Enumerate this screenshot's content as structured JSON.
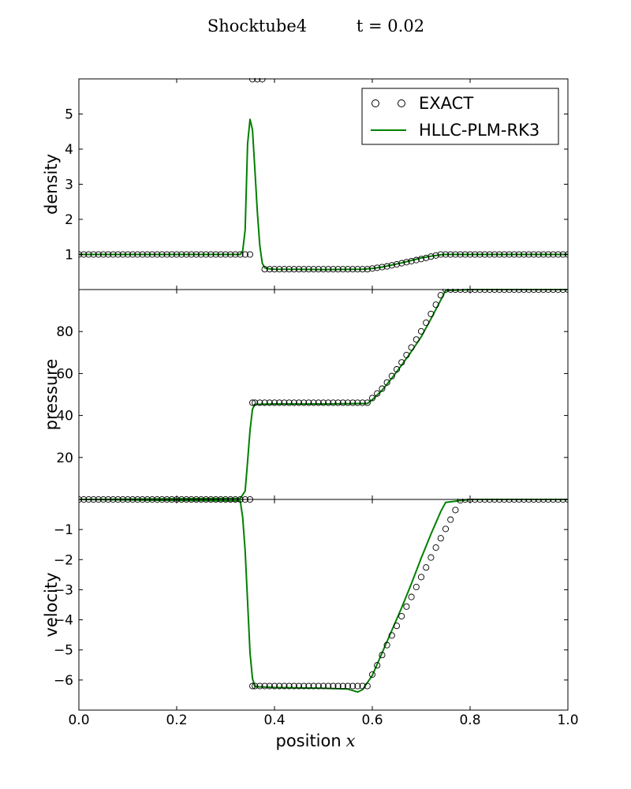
{
  "header": {
    "title": "Shocktube4",
    "time_label": "t = 0.02"
  },
  "colors": {
    "numeric": "#008000",
    "exact_marker": "#000000",
    "axes": "#000000",
    "background": "#ffffff"
  },
  "legend": {
    "location": "upper right of top panel",
    "entries": [
      "EXACT",
      "HLLC-PLM-RK3"
    ]
  },
  "chart_data": {
    "type": "line",
    "shared_x": {
      "label": "position",
      "label_math": "x",
      "range": [
        0.0,
        1.0
      ],
      "ticks": [
        0.0,
        0.2,
        0.4,
        0.6,
        0.8,
        1.0
      ],
      "tick_labels": [
        "0.0",
        "0.2",
        "0.4",
        "0.6",
        "0.8",
        "1.0"
      ]
    },
    "panels": [
      {
        "ylabel": "density",
        "ylim": [
          0.0,
          6.0
        ],
        "yticks": [
          1,
          2,
          3,
          4,
          5
        ],
        "ytick_labels": [
          "1",
          "2",
          "3",
          "4",
          "5"
        ],
        "series": [
          {
            "name": "EXACT",
            "style": "markers",
            "x": [
              0.0,
              0.01,
              0.02,
              0.03,
              0.04,
              0.05,
              0.06,
              0.07,
              0.08,
              0.09,
              0.1,
              0.11,
              0.12,
              0.13,
              0.14,
              0.15,
              0.16,
              0.17,
              0.18,
              0.19,
              0.2,
              0.21,
              0.22,
              0.23,
              0.24,
              0.25,
              0.26,
              0.27,
              0.28,
              0.29,
              0.3,
              0.31,
              0.32,
              0.33,
              0.34,
              0.35,
              0.355,
              0.365,
              0.375,
              0.38,
              0.39,
              0.4,
              0.41,
              0.42,
              0.43,
              0.44,
              0.45,
              0.46,
              0.47,
              0.48,
              0.49,
              0.5,
              0.51,
              0.52,
              0.53,
              0.54,
              0.55,
              0.56,
              0.57,
              0.58,
              0.59,
              0.6,
              0.61,
              0.62,
              0.63,
              0.64,
              0.65,
              0.66,
              0.67,
              0.68,
              0.69,
              0.7,
              0.71,
              0.72,
              0.73,
              0.74,
              0.75,
              0.76,
              0.77,
              0.78,
              0.79,
              0.8,
              0.81,
              0.82,
              0.83,
              0.84,
              0.85,
              0.86,
              0.87,
              0.88,
              0.89,
              0.9,
              0.91,
              0.92,
              0.93,
              0.94,
              0.95,
              0.96,
              0.97,
              0.98,
              0.99,
              1.0
            ],
            "y": [
              1.0,
              1.0,
              1.0,
              1.0,
              1.0,
              1.0,
              1.0,
              1.0,
              1.0,
              1.0,
              1.0,
              1.0,
              1.0,
              1.0,
              1.0,
              1.0,
              1.0,
              1.0,
              1.0,
              1.0,
              1.0,
              1.0,
              1.0,
              1.0,
              1.0,
              1.0,
              1.0,
              1.0,
              1.0,
              1.0,
              1.0,
              1.0,
              1.0,
              1.0,
              1.0,
              1.0,
              5.99,
              5.99,
              5.99,
              0.58,
              0.58,
              0.58,
              0.58,
              0.58,
              0.58,
              0.58,
              0.58,
              0.58,
              0.58,
              0.58,
              0.58,
              0.58,
              0.58,
              0.58,
              0.58,
              0.58,
              0.58,
              0.58,
              0.58,
              0.58,
              0.58,
              0.6,
              0.62,
              0.64,
              0.66,
              0.69,
              0.72,
              0.75,
              0.78,
              0.81,
              0.84,
              0.87,
              0.9,
              0.94,
              0.97,
              1.0,
              1.0,
              1.0,
              1.0,
              1.0,
              1.0,
              1.0,
              1.0,
              1.0,
              1.0,
              1.0,
              1.0,
              1.0,
              1.0,
              1.0,
              1.0,
              1.0,
              1.0,
              1.0,
              1.0,
              1.0,
              1.0,
              1.0,
              1.0,
              1.0,
              1.0,
              1.0
            ]
          },
          {
            "name": "HLLC-PLM-RK3",
            "style": "line",
            "x": [
              0.0,
              0.33,
              0.335,
              0.34,
              0.345,
              0.35,
              0.355,
              0.36,
              0.365,
              0.37,
              0.375,
              0.38,
              0.385,
              0.39,
              0.4,
              0.5,
              0.58,
              0.6,
              0.62,
              0.64,
              0.66,
              0.68,
              0.7,
              0.72,
              0.74,
              0.75,
              0.8,
              1.0
            ],
            "y": [
              1.0,
              1.0,
              1.1,
              1.7,
              4.15,
              4.85,
              4.55,
              3.4,
              2.2,
              1.25,
              0.75,
              0.62,
              0.6,
              0.59,
              0.58,
              0.57,
              0.58,
              0.6,
              0.64,
              0.7,
              0.76,
              0.83,
              0.9,
              0.95,
              0.99,
              1.0,
              1.0,
              1.0
            ]
          }
        ]
      },
      {
        "ylabel": "pressure",
        "ylim": [
          0.0,
          100.0
        ],
        "yticks": [
          20,
          40,
          60,
          80
        ],
        "ytick_labels": [
          "20",
          "40",
          "60",
          "80"
        ],
        "series": [
          {
            "name": "EXACT",
            "style": "markers",
            "x": [
              0.0,
              0.01,
              0.02,
              0.03,
              0.04,
              0.05,
              0.06,
              0.07,
              0.08,
              0.09,
              0.1,
              0.11,
              0.12,
              0.13,
              0.14,
              0.15,
              0.16,
              0.17,
              0.18,
              0.19,
              0.2,
              0.21,
              0.22,
              0.23,
              0.24,
              0.25,
              0.26,
              0.27,
              0.28,
              0.29,
              0.3,
              0.31,
              0.32,
              0.33,
              0.34,
              0.35,
              0.355,
              0.36,
              0.37,
              0.38,
              0.39,
              0.4,
              0.41,
              0.42,
              0.43,
              0.44,
              0.45,
              0.46,
              0.47,
              0.48,
              0.49,
              0.5,
              0.51,
              0.52,
              0.53,
              0.54,
              0.55,
              0.56,
              0.57,
              0.58,
              0.59,
              0.6,
              0.61,
              0.62,
              0.63,
              0.64,
              0.65,
              0.66,
              0.67,
              0.68,
              0.69,
              0.7,
              0.71,
              0.72,
              0.73,
              0.74,
              0.75,
              0.76,
              0.77,
              0.78,
              0.79,
              0.8,
              0.81,
              0.82,
              0.83,
              0.84,
              0.85,
              0.86,
              0.87,
              0.88,
              0.89,
              0.9,
              0.91,
              0.92,
              0.93,
              0.94,
              0.95,
              0.96,
              0.97,
              0.98,
              0.99,
              1.0
            ],
            "y": [
              0.01,
              0.01,
              0.01,
              0.01,
              0.01,
              0.01,
              0.01,
              0.01,
              0.01,
              0.01,
              0.01,
              0.01,
              0.01,
              0.01,
              0.01,
              0.01,
              0.01,
              0.01,
              0.01,
              0.01,
              0.01,
              0.01,
              0.01,
              0.01,
              0.01,
              0.01,
              0.01,
              0.01,
              0.01,
              0.01,
              0.01,
              0.01,
              0.01,
              0.01,
              0.01,
              0.01,
              46.1,
              46.1,
              46.1,
              46.1,
              46.1,
              46.1,
              46.1,
              46.1,
              46.1,
              46.1,
              46.1,
              46.1,
              46.1,
              46.1,
              46.1,
              46.1,
              46.1,
              46.1,
              46.1,
              46.1,
              46.1,
              46.1,
              46.1,
              46.1,
              46.1,
              48.3,
              50.5,
              52.8,
              55.7,
              58.8,
              62.0,
              65.3,
              68.8,
              72.4,
              76.2,
              80.1,
              84.2,
              88.4,
              92.8,
              97.3,
              100.0,
              100.0,
              100.0,
              100.0,
              100.0,
              100.0,
              100.0,
              100.0,
              100.0,
              100.0,
              100.0,
              100.0,
              100.0,
              100.0,
              100.0,
              100.0,
              100.0,
              100.0,
              100.0,
              100.0,
              100.0,
              100.0,
              100.0,
              100.0,
              100.0,
              100.0
            ]
          },
          {
            "name": "HLLC-PLM-RK3",
            "style": "line",
            "x": [
              0.0,
              0.33,
              0.34,
              0.345,
              0.35,
              0.355,
              0.36,
              0.4,
              0.5,
              0.59,
              0.6,
              0.62,
              0.64,
              0.66,
              0.68,
              0.7,
              0.72,
              0.74,
              0.75,
              0.8,
              1.0
            ],
            "y": [
              0.01,
              0.5,
              4.0,
              18.0,
              33.0,
              43.0,
              45.3,
              45.5,
              45.5,
              45.7,
              47.5,
              52.0,
              57.8,
              64.0,
              70.5,
              77.5,
              86.0,
              95.0,
              99.5,
              100.0,
              100.0
            ]
          }
        ]
      },
      {
        "ylabel": "velocity",
        "ylim": [
          -7.0,
          0.0
        ],
        "yticks": [
          -6,
          -5,
          -4,
          -3,
          -2,
          -1
        ],
        "ytick_labels": [
          "−6",
          "−5",
          "−4",
          "−3",
          "−2",
          "−1"
        ],
        "series": [
          {
            "name": "EXACT",
            "style": "markers",
            "x": [
              0.0,
              0.01,
              0.02,
              0.03,
              0.04,
              0.05,
              0.06,
              0.07,
              0.08,
              0.09,
              0.1,
              0.11,
              0.12,
              0.13,
              0.14,
              0.15,
              0.16,
              0.17,
              0.18,
              0.19,
              0.2,
              0.21,
              0.22,
              0.23,
              0.24,
              0.25,
              0.26,
              0.27,
              0.28,
              0.29,
              0.3,
              0.31,
              0.32,
              0.33,
              0.34,
              0.35,
              0.355,
              0.36,
              0.37,
              0.38,
              0.39,
              0.4,
              0.41,
              0.42,
              0.43,
              0.44,
              0.45,
              0.46,
              0.47,
              0.48,
              0.49,
              0.5,
              0.51,
              0.52,
              0.53,
              0.54,
              0.55,
              0.56,
              0.57,
              0.58,
              0.59,
              0.6,
              0.61,
              0.62,
              0.63,
              0.64,
              0.65,
              0.66,
              0.67,
              0.68,
              0.69,
              0.7,
              0.71,
              0.72,
              0.73,
              0.74,
              0.75,
              0.76,
              0.77,
              0.78,
              0.79,
              0.8,
              0.81,
              0.82,
              0.83,
              0.84,
              0.85,
              0.86,
              0.87,
              0.88,
              0.89,
              0.9,
              0.91,
              0.92,
              0.93,
              0.94,
              0.95,
              0.96,
              0.97,
              0.98,
              0.99,
              1.0
            ],
            "y": [
              0.0,
              0.0,
              0.0,
              0.0,
              0.0,
              0.0,
              0.0,
              0.0,
              0.0,
              0.0,
              0.0,
              0.0,
              0.0,
              0.0,
              0.0,
              0.0,
              0.0,
              0.0,
              0.0,
              0.0,
              0.0,
              0.0,
              0.0,
              0.0,
              0.0,
              0.0,
              0.0,
              0.0,
              0.0,
              0.0,
              0.0,
              0.0,
              0.0,
              0.0,
              0.0,
              0.0,
              -6.2,
              -6.2,
              -6.2,
              -6.2,
              -6.2,
              -6.2,
              -6.2,
              -6.2,
              -6.2,
              -6.2,
              -6.2,
              -6.2,
              -6.2,
              -6.2,
              -6.2,
              -6.2,
              -6.2,
              -6.2,
              -6.2,
              -6.2,
              -6.2,
              -6.2,
              -6.2,
              -6.2,
              -6.2,
              -5.82,
              -5.51,
              -5.17,
              -4.84,
              -4.52,
              -4.2,
              -3.88,
              -3.56,
              -3.24,
              -2.91,
              -2.58,
              -2.26,
              -1.93,
              -1.6,
              -1.29,
              -0.98,
              -0.67,
              -0.35,
              -0.03,
              0.0,
              0.0,
              0.0,
              0.0,
              0.0,
              0.0,
              0.0,
              0.0,
              0.0,
              0.0,
              0.0,
              0.0,
              0.0,
              0.0,
              0.0,
              0.0,
              0.0,
              0.0,
              0.0,
              0.0,
              0.0,
              0.0
            ]
          },
          {
            "name": "HLLC-PLM-RK3",
            "style": "line",
            "x": [
              0.0,
              0.33,
              0.335,
              0.34,
              0.345,
              0.35,
              0.355,
              0.36,
              0.4,
              0.5,
              0.55,
              0.56,
              0.57,
              0.58,
              0.6,
              0.62,
              0.64,
              0.66,
              0.68,
              0.7,
              0.72,
              0.74,
              0.75,
              0.8,
              1.0
            ],
            "y": [
              0.0,
              -0.05,
              -0.6,
              -1.7,
              -3.4,
              -5.1,
              -5.95,
              -6.22,
              -6.25,
              -6.27,
              -6.3,
              -6.35,
              -6.4,
              -6.32,
              -5.85,
              -5.1,
              -4.35,
              -3.6,
              -2.8,
              -1.95,
              -1.15,
              -0.4,
              -0.1,
              0.0,
              0.0
            ]
          }
        ]
      }
    ]
  }
}
